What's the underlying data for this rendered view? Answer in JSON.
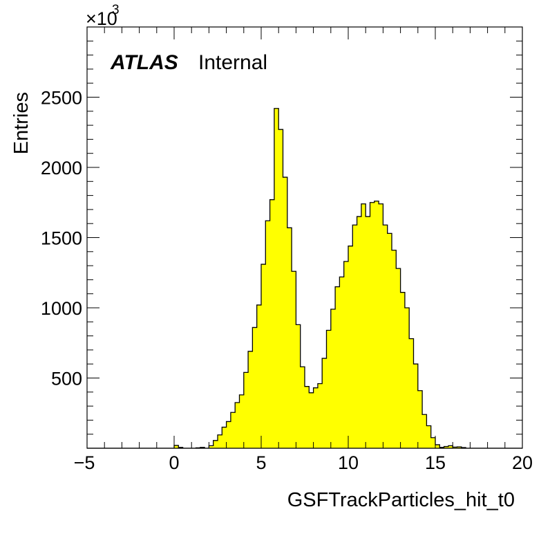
{
  "chart_data": {
    "type": "bar",
    "style": "histogram",
    "fill_color": "#ffff00",
    "line_color": "#000000",
    "x_bin_edges_start": -5,
    "x_bin_width": 0.25,
    "xlim": [
      -5,
      20
    ],
    "ylim": [
      0,
      3000
    ],
    "y_scale_factor_label": "×10",
    "y_scale_factor_exponent": "3",
    "y_units": "thousands",
    "xlabel": "GSFTrackParticles_hit_t0",
    "ylabel": "Entries",
    "x_ticks": [
      -5,
      0,
      5,
      10,
      15,
      20
    ],
    "x_tick_labels": [
      "−5",
      "0",
      "5",
      "10",
      "15",
      "20"
    ],
    "y_ticks": [
      500,
      1000,
      1500,
      2000,
      2500
    ],
    "y_tick_labels": [
      "500",
      "1000",
      "1500",
      "2000",
      "2500"
    ],
    "grid": false,
    "experiment_label": "ATLAS",
    "status_label": "Internal",
    "values": [
      0,
      0,
      0,
      0,
      0,
      0,
      0,
      0,
      0,
      0,
      0,
      0,
      0,
      0,
      0,
      0,
      0,
      0,
      0,
      0,
      20,
      6,
      0,
      0,
      0,
      3,
      6,
      0,
      18,
      55,
      95,
      150,
      190,
      255,
      325,
      380,
      540,
      690,
      860,
      1020,
      1310,
      1620,
      1770,
      2420,
      2270,
      1930,
      1570,
      1260,
      880,
      580,
      440,
      395,
      430,
      460,
      640,
      840,
      990,
      1150,
      1220,
      1330,
      1440,
      1590,
      1650,
      1740,
      1650,
      1750,
      1760,
      1740,
      1590,
      1530,
      1410,
      1280,
      1110,
      1000,
      780,
      600,
      410,
      240,
      160,
      75,
      25,
      6,
      12,
      18,
      8,
      10,
      5,
      0,
      0,
      0,
      0,
      0,
      0,
      0,
      0,
      0,
      0,
      0,
      0,
      0
    ]
  }
}
